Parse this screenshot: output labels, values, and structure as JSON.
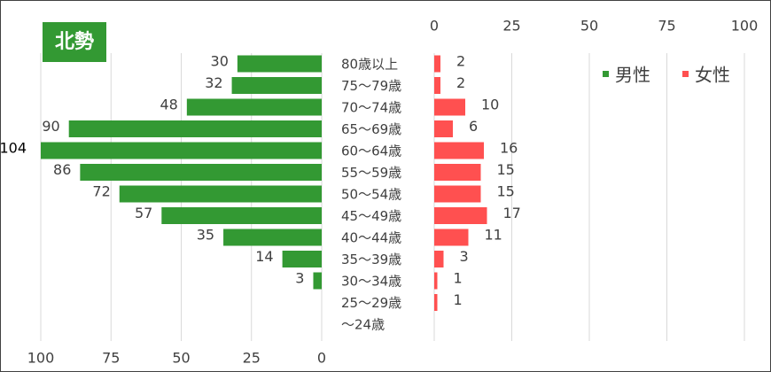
{
  "chart_data": {
    "type": "pyramid",
    "title": "北勢",
    "categories": [
      "80歳以上",
      "75～79歳",
      "70～74歳",
      "65～69歳",
      "60～64歳",
      "55～59歳",
      "50～54歳",
      "45～49歳",
      "40～44歳",
      "35～39歳",
      "30～34歳",
      "25～29歳",
      "～24歳"
    ],
    "series": [
      {
        "name": "男性",
        "color": "#339933",
        "values": [
          30,
          32,
          48,
          90,
          104,
          86,
          72,
          57,
          35,
          14,
          3,
          null,
          null
        ],
        "xlim": [
          0,
          100
        ],
        "xticks": [
          0,
          25,
          50,
          75,
          100
        ]
      },
      {
        "name": "女性",
        "color": "#ff5050",
        "values": [
          2,
          2,
          10,
          6,
          16,
          15,
          15,
          17,
          11,
          3,
          1,
          1,
          null
        ],
        "xlim": [
          0,
          100
        ],
        "xticks": [
          0,
          25,
          50,
          75,
          100
        ]
      }
    ],
    "grid": true,
    "legend": "top-right"
  }
}
